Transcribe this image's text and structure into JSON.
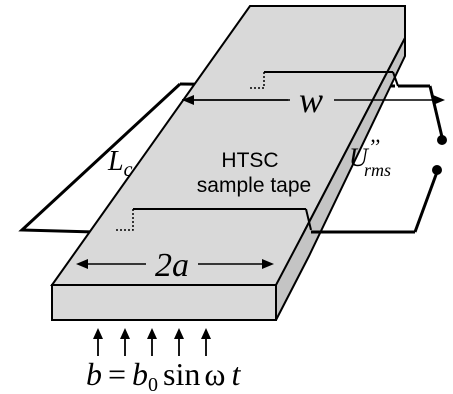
{
  "labels": {
    "w": "w",
    "lc_main": "L",
    "lc_sub": "c",
    "sample_line1": "HTSC",
    "sample_line2": "sample tape",
    "urms_main": "U",
    "urms_sup": "’’",
    "urms_sub": "rms",
    "two_a": "2a",
    "field_lhs": "b",
    "field_eq": "=",
    "field_b": "b",
    "field_b_sub": "0",
    "field_rest": "sin",
    "field_omega": "ω",
    "field_t": "t"
  },
  "field_arrow_count": 5,
  "colors": {
    "tape_fill": "#d9d9d9",
    "tape_side": "#c4c4c4",
    "stroke": "#000000"
  }
}
